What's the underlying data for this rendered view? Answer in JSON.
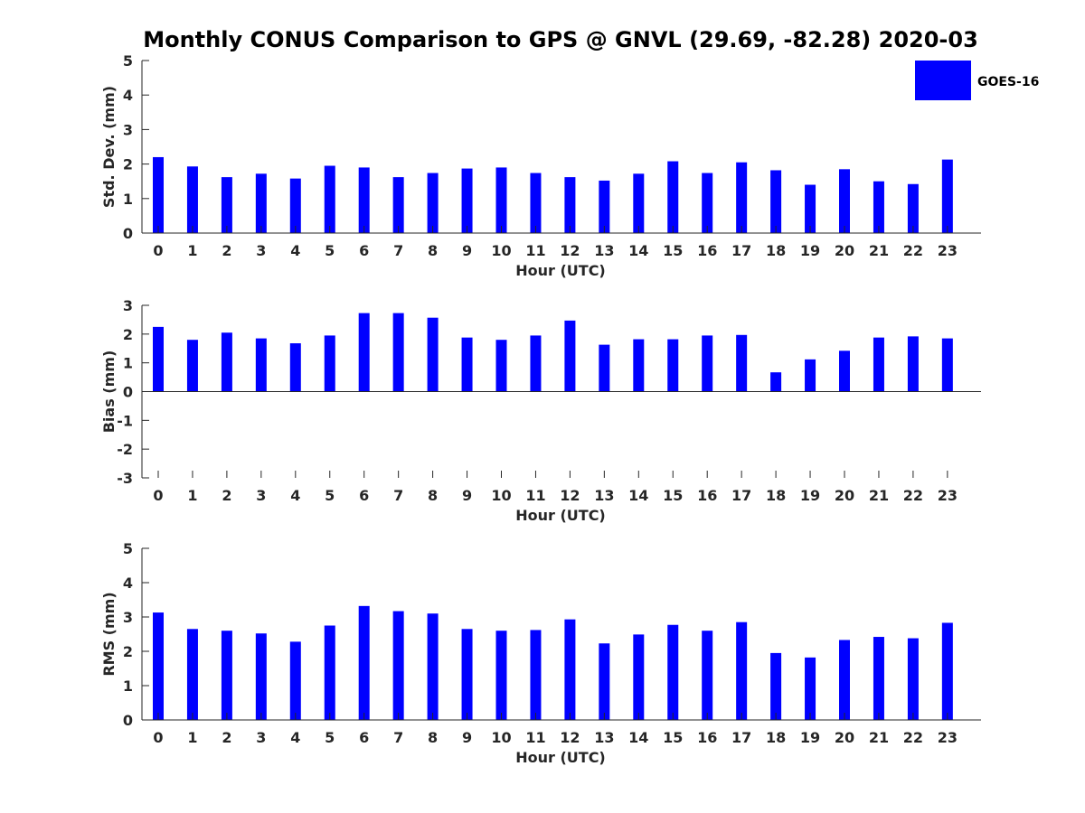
{
  "title": "Monthly CONUS Comparison to GPS @ GNVL (29.69, -82.28) 2020-03",
  "colors": {
    "bar": "#0000ff",
    "axis": "#262626"
  },
  "legend": {
    "label": "GOES-16",
    "placement": "top-right"
  },
  "chart_data": [
    {
      "type": "bar",
      "xlabel": "Hour (UTC)",
      "ylabel": "Std. Dev. (mm)",
      "ylim": [
        0,
        5
      ],
      "yticks": [
        0,
        1,
        2,
        3,
        4,
        5
      ],
      "categories": [
        "0",
        "1",
        "2",
        "3",
        "4",
        "5",
        "6",
        "7",
        "8",
        "9",
        "10",
        "11",
        "12",
        "13",
        "14",
        "15",
        "16",
        "17",
        "18",
        "19",
        "20",
        "21",
        "22",
        "23"
      ],
      "series": [
        {
          "name": "GOES-16",
          "values": [
            2.2,
            1.93,
            1.62,
            1.72,
            1.58,
            1.95,
            1.9,
            1.62,
            1.74,
            1.87,
            1.9,
            1.74,
            1.62,
            1.52,
            1.72,
            2.08,
            1.74,
            2.05,
            1.82,
            1.4,
            1.85,
            1.5,
            1.42,
            2.13
          ]
        }
      ],
      "grid": false
    },
    {
      "type": "bar",
      "xlabel": "Hour (UTC)",
      "ylabel": "Bias (mm)",
      "ylim": [
        -3,
        3
      ],
      "yticks": [
        -3,
        -2,
        -1,
        0,
        1,
        2,
        3
      ],
      "categories": [
        "0",
        "1",
        "2",
        "3",
        "4",
        "5",
        "6",
        "7",
        "8",
        "9",
        "10",
        "11",
        "12",
        "13",
        "14",
        "15",
        "16",
        "17",
        "18",
        "19",
        "20",
        "21",
        "22",
        "23"
      ],
      "series": [
        {
          "name": "GOES-16",
          "values": [
            2.25,
            1.8,
            2.05,
            1.85,
            1.68,
            1.95,
            2.73,
            2.73,
            2.57,
            1.88,
            1.8,
            1.95,
            2.47,
            1.63,
            1.82,
            1.82,
            1.95,
            1.97,
            0.67,
            1.12,
            1.42,
            1.88,
            1.92,
            1.85
          ]
        }
      ],
      "grid": false
    },
    {
      "type": "bar",
      "xlabel": "Hour (UTC)",
      "ylabel": "RMS (mm)",
      "ylim": [
        0,
        5
      ],
      "yticks": [
        0,
        1,
        2,
        3,
        4,
        5
      ],
      "categories": [
        "0",
        "1",
        "2",
        "3",
        "4",
        "5",
        "6",
        "7",
        "8",
        "9",
        "10",
        "11",
        "12",
        "13",
        "14",
        "15",
        "16",
        "17",
        "18",
        "19",
        "20",
        "21",
        "22",
        "23"
      ],
      "series": [
        {
          "name": "GOES-16",
          "values": [
            3.13,
            2.65,
            2.6,
            2.52,
            2.28,
            2.75,
            3.32,
            3.17,
            3.1,
            2.65,
            2.6,
            2.62,
            2.93,
            2.23,
            2.49,
            2.77,
            2.6,
            2.85,
            1.95,
            1.82,
            2.33,
            2.42,
            2.38,
            2.83
          ]
        }
      ],
      "grid": false
    }
  ]
}
